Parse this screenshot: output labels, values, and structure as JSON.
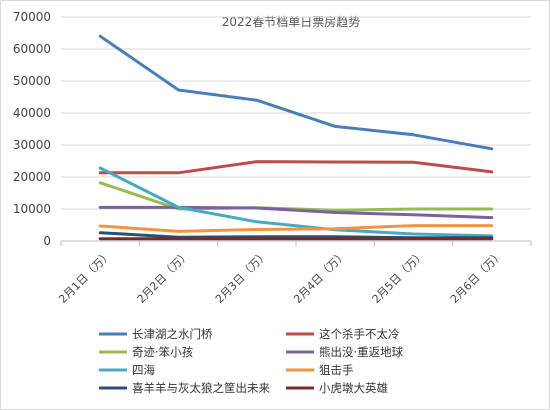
{
  "chart_data": {
    "type": "line",
    "title": "2022春节档单日票房趋势",
    "xlabel": "",
    "ylabel": "",
    "categories": [
      "2月1日（万）",
      "2月2日（万）",
      "2月3日（万）",
      "2月4日（万）",
      "2月5日（万）",
      "2月6日（万）"
    ],
    "ylim": [
      0,
      70000
    ],
    "yticks": [
      0,
      10000,
      20000,
      30000,
      40000,
      50000,
      60000,
      70000
    ],
    "grid": true,
    "legend_position": "bottom",
    "series": [
      {
        "name": "长津湖之水门桥",
        "color": "#4a7ebb",
        "values": [
          64000,
          47200,
          44000,
          35800,
          33200,
          28800
        ]
      },
      {
        "name": "这个杀手不太冷",
        "color": "#be4b48",
        "values": [
          21300,
          21300,
          24800,
          24700,
          24600,
          21600
        ]
      },
      {
        "name": "奇迹·笨小孩",
        "color": "#98b954",
        "values": [
          18200,
          10000,
          10400,
          9600,
          10000,
          10000
        ]
      },
      {
        "name": "熊出没·重返地球",
        "color": "#7d60a0",
        "values": [
          10500,
          10500,
          10300,
          8900,
          8200,
          7300
        ]
      },
      {
        "name": "四海",
        "color": "#46aac5",
        "values": [
          22800,
          10500,
          6000,
          3500,
          2200,
          1600
        ]
      },
      {
        "name": "狙击手",
        "color": "#f69240",
        "values": [
          4700,
          3000,
          3600,
          3800,
          4800,
          4800
        ]
      },
      {
        "name": "喜羊羊与灰太狼之筐出未来",
        "color": "#2c4d75",
        "values": [
          2600,
          1200,
          1300,
          1300,
          1000,
          1000
        ]
      },
      {
        "name": "小虎墩大英雄",
        "color": "#772c2a",
        "values": [
          700,
          700,
          700,
          700,
          700,
          700
        ]
      }
    ]
  }
}
